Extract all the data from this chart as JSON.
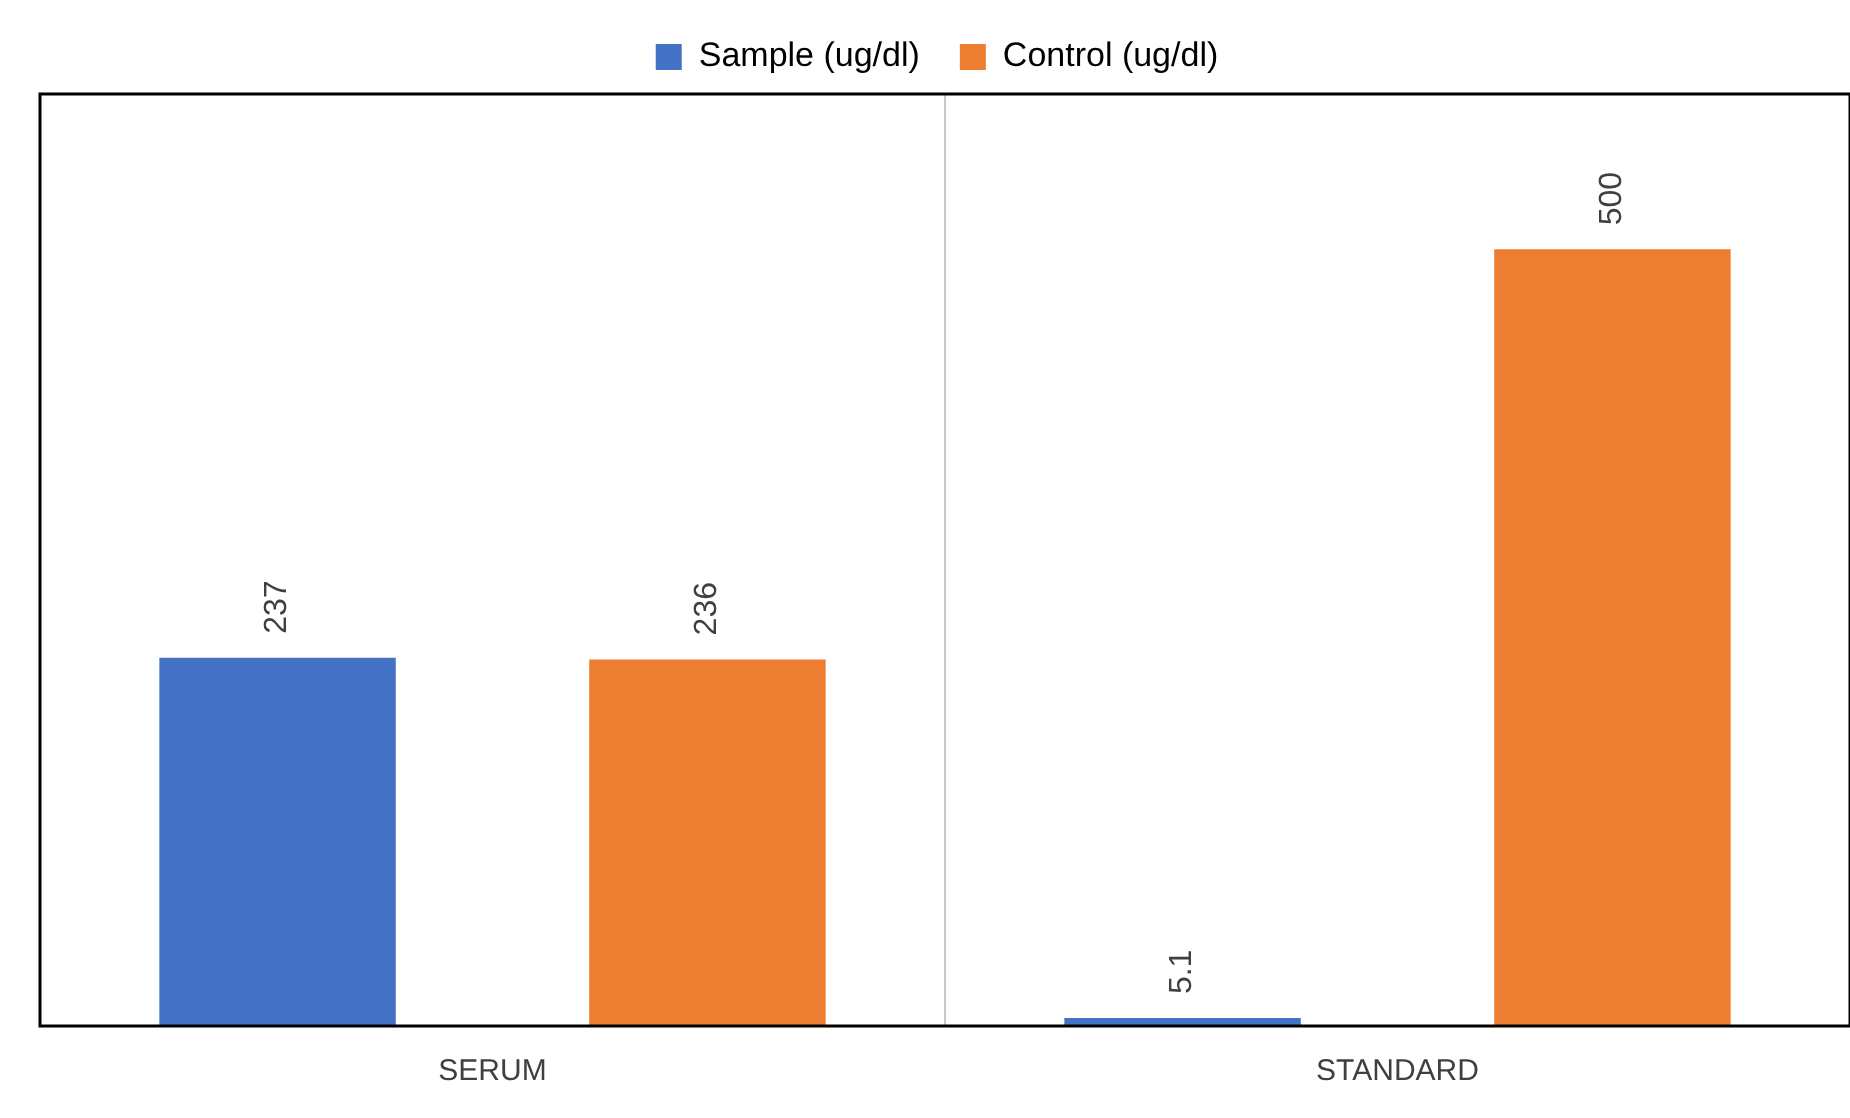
{
  "chart_data": {
    "type": "bar",
    "categories": [
      "SERUM",
      "STANDARD"
    ],
    "series": [
      {
        "name": "Sample (ug/dl)",
        "color": "#4472c4",
        "values": [
          237,
          5.1
        ]
      },
      {
        "name": "Control (ug/dl)",
        "color": "#ed7d31",
        "values": [
          236,
          500
        ]
      }
    ],
    "ylim": [
      0,
      600
    ],
    "tick_labels": "x",
    "data_labels": true,
    "grid": "x",
    "legend": "top"
  }
}
